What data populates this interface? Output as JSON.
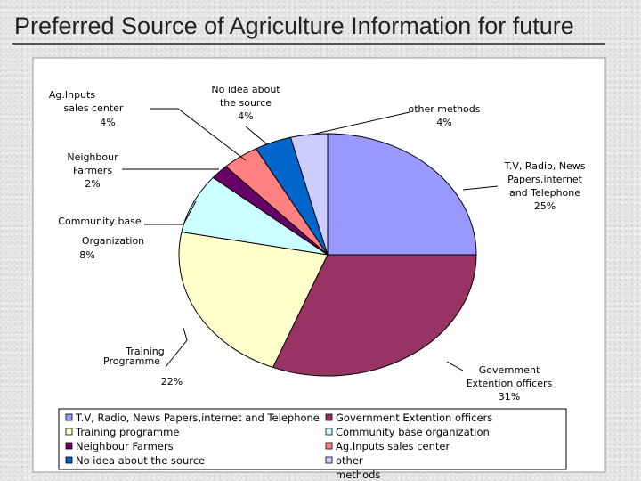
{
  "slide_title": "Preferred Source of Agriculture Information for future",
  "chart_data": {
    "type": "pie",
    "title": "",
    "start_angle_deg": 0,
    "direction": "clockwise",
    "slices": [
      {
        "legend": "T.V, Radio, News Papers,internet and Telephone",
        "label_lines": [
          "T.V, Radio, News",
          "Papers,internet",
          "and Telephone",
          "25%"
        ],
        "value": 25,
        "color": "#9999ff"
      },
      {
        "legend": "Government Extention officers",
        "label_lines": [
          "Government",
          "Extention officers",
          "31%"
        ],
        "value": 31,
        "color": "#993366"
      },
      {
        "legend": "Training programme",
        "label_lines": [
          "Training",
          "Programme",
          "22%"
        ],
        "value": 22,
        "color": "#ffffcc"
      },
      {
        "legend": "Community base organization",
        "label_lines": [
          "Community base",
          "Organization",
          "8%"
        ],
        "value": 8,
        "color": "#ccffff"
      },
      {
        "legend": "Neighbour Farmers",
        "label_lines": [
          "Neighbour",
          "Farmers",
          "2%"
        ],
        "value": 2,
        "color": "#660066"
      },
      {
        "legend": "Ag.Inputs sales center",
        "label_lines": [
          "Ag.Inputs",
          "sales center",
          "4%"
        ],
        "value": 4,
        "color": "#ff8080"
      },
      {
        "legend": "No idea about the source",
        "label_lines": [
          "No idea about",
          "the source",
          "4%"
        ],
        "value": 4,
        "color": "#0066cc"
      },
      {
        "legend": "other methods",
        "legend_lines": [
          "other",
          "methods"
        ],
        "label_lines": [
          "other methods",
          "4%"
        ],
        "value": 4,
        "color": "#ccccff"
      }
    ],
    "legend_placement": "bottom"
  }
}
